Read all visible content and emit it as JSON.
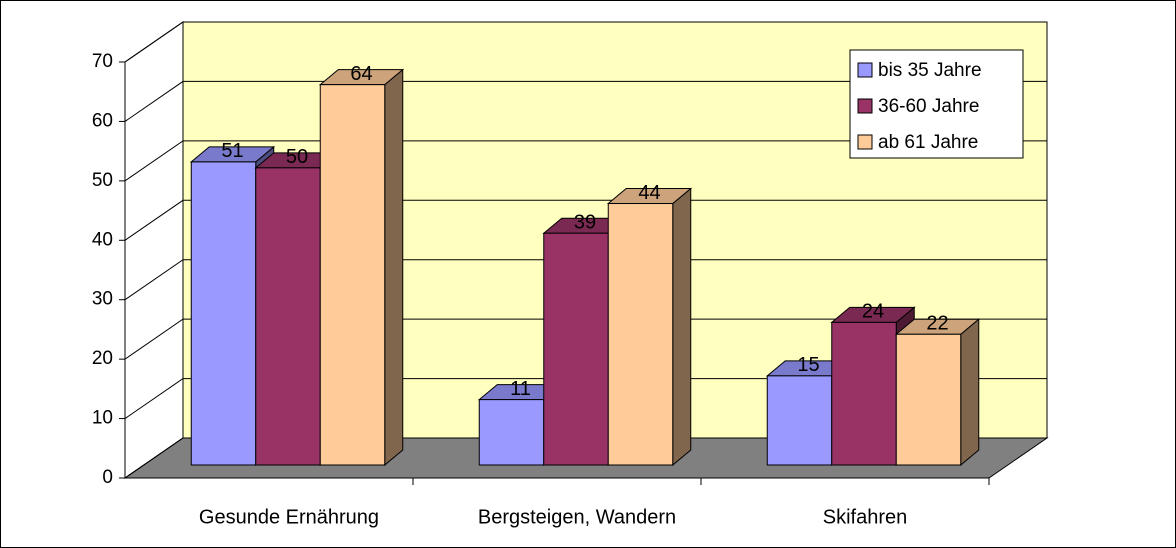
{
  "chart_data": {
    "type": "bar",
    "categories": [
      "Gesunde Ernährung",
      "Bergsteigen, Wandern",
      "Skifahren"
    ],
    "series": [
      {
        "name": "bis 35 Jahre",
        "color": "#9999ff",
        "values": [
          51,
          11,
          15
        ]
      },
      {
        "name": "36-60 Jahre",
        "color": "#993366",
        "values": [
          50,
          39,
          24
        ]
      },
      {
        "name": "ab 61 Jahre",
        "color": "#ffcc99",
        "values": [
          64,
          44,
          22
        ]
      }
    ],
    "ylim": [
      0,
      70
    ],
    "yticks": [
      0,
      10,
      20,
      30,
      40,
      50,
      60,
      70
    ],
    "grid": true,
    "legend": "top-right",
    "wall_color": "#ffffc0",
    "floor_color": "#808080"
  }
}
